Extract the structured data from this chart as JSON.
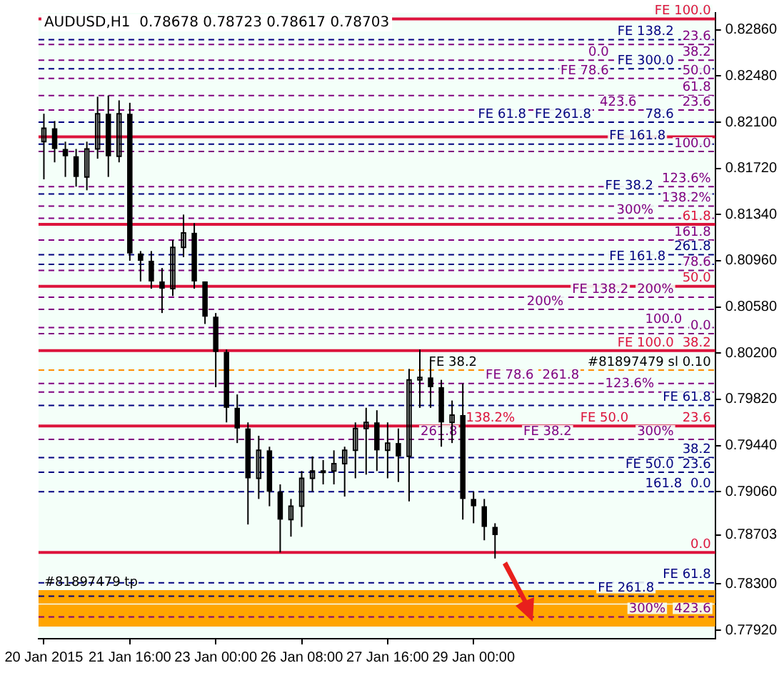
{
  "chart_data": {
    "type": "candlestick",
    "title": "AUDUSD,H1  0.78678 0.78723 0.78617 0.78703",
    "color": "#000000",
    "categories": [
      "20 Jan 2015",
      null,
      null,
      null,
      null,
      null,
      null,
      null,
      "21 Jan 16:00",
      null,
      null,
      null,
      null,
      null,
      null,
      null,
      "23 Jan 00:00",
      null,
      null,
      null,
      null,
      null,
      null,
      null,
      "26 Jan 08:00",
      null,
      null,
      null,
      null,
      null,
      null,
      null,
      "27 Jan 16:00",
      null,
      null,
      null,
      null,
      null,
      null,
      null,
      "29 Jan 00:00",
      null,
      null,
      null,
      null,
      null,
      null,
      null,
      null,
      null,
      null,
      null,
      null,
      null,
      null,
      null,
      null,
      null,
      null,
      null,
      null,
      null,
      null
    ],
    "ohlc": [
      [
        0.8194,
        0.8217,
        0.8163,
        0.8205
      ],
      [
        0.8205,
        0.8211,
        0.8177,
        0.8188
      ],
      [
        0.8188,
        0.8194,
        0.8165,
        0.8182
      ],
      [
        0.8182,
        0.8188,
        0.8157,
        0.8165
      ],
      [
        0.8165,
        0.8194,
        0.8154,
        0.8188
      ],
      [
        0.8188,
        0.8231,
        0.818,
        0.8217
      ],
      [
        0.8217,
        0.8232,
        0.8165,
        0.8182
      ],
      [
        0.8182,
        0.8228,
        0.8177,
        0.8217
      ],
      [
        0.8217,
        0.8226,
        0.8096,
        0.8102
      ],
      [
        0.8102,
        0.8104,
        0.8079,
        0.8096
      ],
      [
        0.8096,
        0.8104,
        0.8073,
        0.8079
      ],
      [
        0.8079,
        0.809,
        0.8053,
        0.8073
      ],
      [
        0.8073,
        0.8113,
        0.8067,
        0.8107
      ],
      [
        0.8107,
        0.8134,
        0.8099,
        0.8119
      ],
      [
        0.8119,
        0.8127,
        0.8073,
        0.8079
      ],
      [
        0.8079,
        0.8079,
        0.8044,
        0.805
      ],
      [
        0.805,
        0.8053,
        0.7992,
        0.8021
      ],
      [
        0.8021,
        0.8023,
        0.7963,
        0.7975
      ],
      [
        0.7975,
        0.7986,
        0.7946,
        0.7958
      ],
      [
        0.7958,
        0.7963,
        0.7879,
        0.7917
      ],
      [
        0.7917,
        0.7952,
        0.79,
        0.794
      ],
      [
        0.794,
        0.7943,
        0.7894,
        0.7906
      ],
      [
        0.7906,
        0.7912,
        0.7856,
        0.7883
      ],
      [
        0.7883,
        0.79,
        0.7869,
        0.7894
      ],
      [
        0.7894,
        0.7923,
        0.7877,
        0.7917
      ],
      [
        0.7917,
        0.7935,
        0.7906,
        0.7923
      ],
      [
        0.7923,
        0.7932,
        0.7912,
        0.7923
      ],
      [
        0.7923,
        0.794,
        0.7912,
        0.7929
      ],
      [
        0.7929,
        0.7943,
        0.7902,
        0.794
      ],
      [
        0.794,
        0.7963,
        0.7917,
        0.7958
      ],
      [
        0.7958,
        0.7975,
        0.792,
        0.7963
      ],
      [
        0.7963,
        0.7973,
        0.7923,
        0.794
      ],
      [
        0.794,
        0.7963,
        0.7917,
        0.7946
      ],
      [
        0.7946,
        0.7958,
        0.7914,
        0.7935
      ],
      [
        0.7935,
        0.8007,
        0.7898,
        0.7998
      ],
      [
        0.7998,
        0.8023,
        0.7975,
        0.8
      ],
      [
        0.8,
        0.8015,
        0.7975,
        0.7992
      ],
      [
        0.7992,
        0.7998,
        0.7943,
        0.7963
      ],
      [
        0.7963,
        0.7981,
        0.7946,
        0.7969
      ],
      [
        0.7969,
        0.7995,
        0.7883,
        0.79
      ],
      [
        0.79,
        0.7906,
        0.788,
        0.7894
      ],
      [
        0.7894,
        0.79,
        0.7866,
        0.7877
      ],
      [
        0.7877,
        0.788,
        0.7851,
        0.78703
      ],
      null,
      null,
      null,
      null,
      null,
      null,
      null,
      null,
      null,
      null,
      null,
      null,
      null,
      null,
      null,
      null,
      null,
      null,
      null,
      null
    ],
    "ylim": [
      0.7785,
      0.83
    ],
    "yticks": [
      {
        "value": 0.7792,
        "label": "0.77920"
      },
      {
        "value": 0.783,
        "label": "0.78300"
      },
      {
        "value": 0.78703,
        "label": "0.78703"
      },
      {
        "value": 0.7906,
        "label": "0.79060"
      },
      {
        "value": 0.7944,
        "label": "0.79440"
      },
      {
        "value": 0.7982,
        "label": "0.79820"
      },
      {
        "value": 0.802,
        "label": "0.80200"
      },
      {
        "value": 0.8058,
        "label": "0.80580"
      },
      {
        "value": 0.8096,
        "label": "0.80960"
      },
      {
        "value": 0.8134,
        "label": "0.81340"
      },
      {
        "value": 0.8172,
        "label": "0.81720"
      },
      {
        "value": 0.821,
        "label": "0.82100"
      },
      {
        "value": 0.8248,
        "label": "0.82480"
      },
      {
        "value": 0.8286,
        "label": "0.82860"
      }
    ],
    "annotations": [
      {
        "text": "61.8",
        "y": 0.8126
      },
      {
        "text": "50.0",
        "y": 0.8075
      },
      {
        "text": "38.2",
        "y": 0.8022
      },
      {
        "text": "23.6",
        "y": 0.796
      },
      {
        "text": "0.0",
        "y": 0.7856
      },
      {
        "text": "#81897479 sl 0.10",
        "y": 0.8006
      },
      {
        "text": "23.6",
        "y": 0.8274
      },
      {
        "text": "38.2",
        "y": 0.8261
      },
      {
        "text": "50.0",
        "y": 0.8246
      },
      {
        "text": "61.8",
        "y": 0.8232
      },
      {
        "text": "23.6",
        "y": 0.822
      },
      {
        "text": "78.6",
        "y": 0.821
      },
      {
        "text": "100.0",
        "y": 0.8186
      },
      {
        "text": "123.6%",
        "y": 0.8157
      },
      {
        "text": "138.2%",
        "y": 0.8141
      },
      {
        "text": "161.8",
        "y": 0.8113
      },
      {
        "text": "200%",
        "y": 0.8066
      },
      {
        "text": "0.0",
        "y": 0.8036
      },
      {
        "text": "261.8",
        "y": 0.7995
      },
      {
        "text": "300%",
        "y": 0.7949
      },
      {
        "text": "423.6",
        "y": 0.7803
      },
      {
        "text": "FE 300.0",
        "y": 0.8254
      },
      {
        "text": "423.6",
        "y": 0.822
      },
      {
        "text": "FE 261.8",
        "y": 0.821
      },
      {
        "text": "300%",
        "y": 0.8131
      },
      {
        "text": "261.8",
        "y": 0.8101
      },
      {
        "text": "FE 161.8",
        "y": 0.8093
      },
      {
        "text": "FE 138.2",
        "y": 0.8066
      },
      {
        "text": "200%",
        "y": 0.8056
      },
      {
        "text": "FE 100.0",
        "y": 0.8022
      },
      {
        "text": "FE 78.6",
        "y": 0.7995
      },
      {
        "text": "FE 61.8",
        "y": 0.7977
      },
      {
        "text": "FE 50.0",
        "y": 0.796
      },
      {
        "text": "FE 38.2",
        "y": 0.7949
      },
      {
        "text": "38.2",
        "y": 0.7934
      },
      {
        "text": "23.6",
        "y": 0.7922
      },
      {
        "text": "0.0",
        "y": 0.7906
      },
      {
        "text": "FE 100.0",
        "y": 0.8295
      },
      {
        "text": "FE 138.2",
        "y": 0.8278
      },
      {
        "text": "0.0",
        "y": 0.8261
      },
      {
        "text": "FE 78.6",
        "y": 0.8246
      },
      {
        "text": "FE 61.8",
        "y": 0.821
      },
      {
        "text": "FE 161.8",
        "y": 0.8192
      },
      {
        "text": "FE 38.2",
        "y": 0.8151
      },
      {
        "text": "78.6",
        "y": 0.8088
      },
      {
        "text": "100.0",
        "y": 0.8041
      },
      {
        "text": "FE 38.2",
        "y": 0.8006
      },
      {
        "text": "123.6%",
        "y": 0.7988
      },
      {
        "text": "138.2%",
        "y": 0.796
      },
      {
        "text": "261.8",
        "y": 0.7949
      },
      {
        "text": "FE 50.0",
        "y": 0.7922
      },
      {
        "text": "161.8",
        "y": 0.7906
      },
      {
        "text": "FE 61.8",
        "y": 0.7831
      },
      {
        "text": "FE 261.8",
        "y": 0.782
      },
      {
        "text": "300%",
        "y": 0.7803
      }
    ],
    "ref_lines": [
      {
        "axis": "y",
        "value": 0.8295,
        "color": "#dc143c"
      },
      {
        "axis": "y",
        "value": 0.8198,
        "color": "#dc143c"
      },
      {
        "axis": "y",
        "value": 0.8126,
        "color": "#dc143c"
      },
      {
        "axis": "y",
        "value": 0.8075,
        "color": "#dc143c"
      },
      {
        "axis": "y",
        "value": 0.8022,
        "color": "#dc143c"
      },
      {
        "axis": "y",
        "value": 0.8006,
        "color": "#ff8c00",
        "line_style": "dashed"
      },
      {
        "axis": "y",
        "value": 0.796,
        "color": "#dc143c"
      },
      {
        "axis": "y",
        "value": 0.7856,
        "color": "#dc143c"
      },
      {
        "axis": "y",
        "value": 0.8274,
        "color": "#800080",
        "line_style": "dashed"
      },
      {
        "axis": "y",
        "value": 0.8261,
        "color": "#800080",
        "line_style": "dashed"
      },
      {
        "axis": "y",
        "value": 0.8246,
        "color": "#800080",
        "line_style": "dashed"
      },
      {
        "axis": "y",
        "value": 0.8232,
        "color": "#800080",
        "line_style": "dashed"
      },
      {
        "axis": "y",
        "value": 0.822,
        "color": "#800080",
        "line_style": "dashed"
      },
      {
        "axis": "y",
        "value": 0.821,
        "color": "#000080",
        "line_style": "dashed"
      },
      {
        "axis": "y",
        "value": 0.8186,
        "color": "#800080",
        "line_style": "dashed"
      },
      {
        "axis": "y",
        "value": 0.8157,
        "color": "#800080",
        "line_style": "dashed"
      },
      {
        "axis": "y",
        "value": 0.8141,
        "color": "#800080",
        "line_style": "dashed"
      },
      {
        "axis": "y",
        "value": 0.8113,
        "color": "#800080",
        "line_style": "dashed"
      },
      {
        "axis": "y",
        "value": 0.8066,
        "color": "#800080",
        "line_style": "dashed"
      },
      {
        "axis": "y",
        "value": 0.8036,
        "color": "#800080",
        "line_style": "dashed"
      },
      {
        "axis": "y",
        "value": 0.7995,
        "color": "#800080",
        "line_style": "dashed"
      },
      {
        "axis": "y",
        "value": 0.7949,
        "color": "#800080",
        "line_style": "dashed"
      },
      {
        "axis": "y",
        "value": 0.7803,
        "color": "#800080",
        "line_style": "dashed"
      },
      {
        "axis": "y",
        "value": 0.8254,
        "color": "#000080",
        "line_style": "dashed"
      },
      {
        "axis": "y",
        "value": 0.8131,
        "color": "#800080",
        "line_style": "dashed"
      },
      {
        "axis": "y",
        "value": 0.8101,
        "color": "#000080",
        "line_style": "dashed"
      },
      {
        "axis": "y",
        "value": 0.8093,
        "color": "#000080",
        "line_style": "dashed"
      },
      {
        "axis": "y",
        "value": 0.8056,
        "color": "#800080",
        "line_style": "dashed"
      },
      {
        "axis": "y",
        "value": 0.7977,
        "color": "#000080",
        "line_style": "dashed"
      },
      {
        "axis": "y",
        "value": 0.7934,
        "color": "#000080",
        "line_style": "dashed"
      },
      {
        "axis": "y",
        "value": 0.7922,
        "color": "#000080",
        "line_style": "dashed"
      },
      {
        "axis": "y",
        "value": 0.7906,
        "color": "#000080",
        "line_style": "dashed"
      },
      {
        "axis": "y",
        "value": 0.8278,
        "color": "#000080",
        "line_style": "dashed"
      },
      {
        "axis": "y",
        "value": 0.8192,
        "color": "#000080",
        "line_style": "dashed"
      },
      {
        "axis": "y",
        "value": 0.8151,
        "color": "#000080",
        "line_style": "dashed"
      },
      {
        "axis": "y",
        "value": 0.8088,
        "color": "#800080",
        "line_style": "dashed"
      },
      {
        "axis": "y",
        "value": 0.8041,
        "color": "#800080",
        "line_style": "dashed"
      },
      {
        "axis": "y",
        "value": 0.7988,
        "color": "#800080",
        "line_style": "dashed"
      },
      {
        "axis": "y",
        "value": 0.7831,
        "color": "#000080",
        "line_style": "dashed"
      },
      {
        "axis": "y",
        "value": 0.782,
        "color": "#000080",
        "line_style": "dashed"
      }
    ],
    "bands": [
      {
        "axis": "y",
        "from": 0.7814,
        "to": 0.7825,
        "color": "#ffa500",
        "label": "#81897479 tp"
      },
      {
        "axis": "y",
        "from": 0.7795,
        "to": 0.7813,
        "color": "#ffa500"
      }
    ]
  }
}
